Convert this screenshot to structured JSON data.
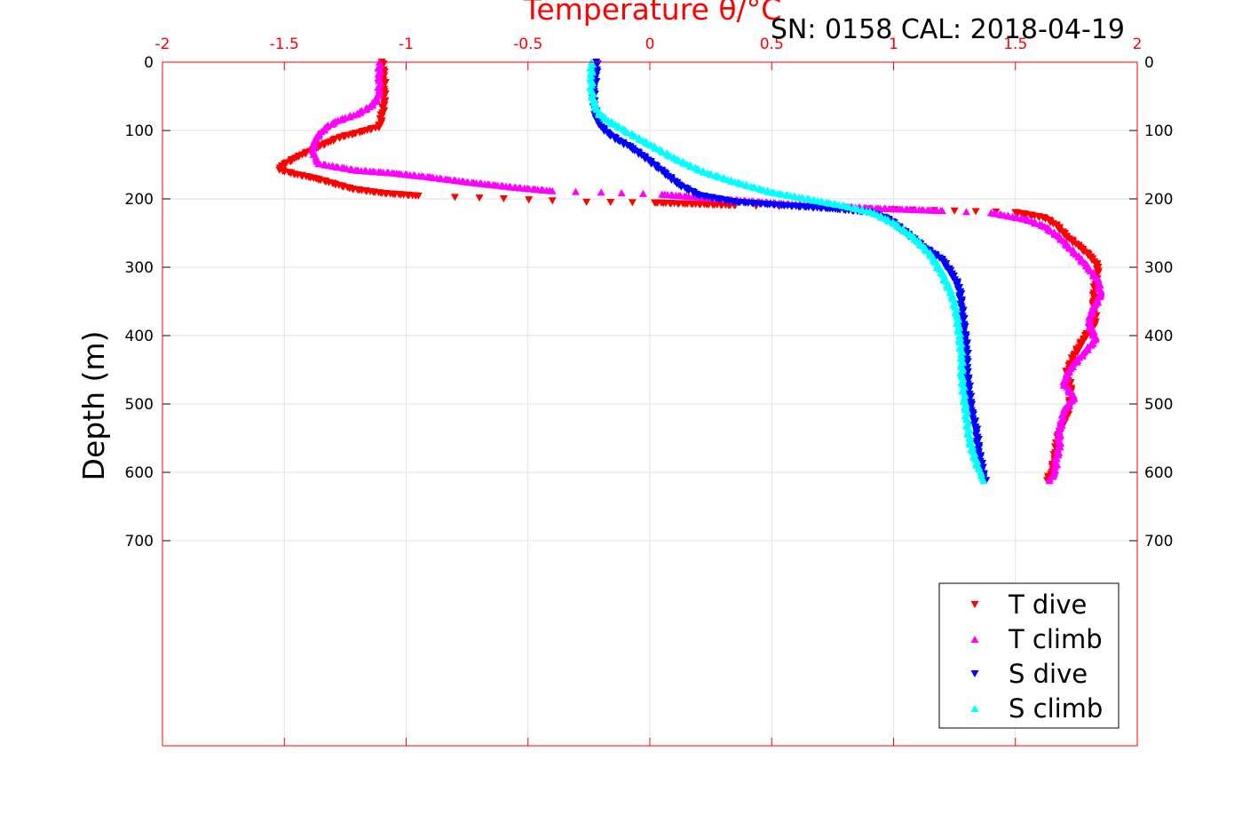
{
  "chart_data": {
    "type": "scatter",
    "title": "SN: 0158  CAL: 2018-04-19",
    "xlabel": "Temperature θ/°C",
    "ylabel": "Depth (m)",
    "xlim": [
      -2,
      2
    ],
    "ylim": [
      0,
      1000
    ],
    "y_reversed": true,
    "grid": true,
    "legend_position": "bottom-right",
    "x_tick_labels": [
      "-2",
      "-1.5",
      "-1",
      "-0.5",
      "0",
      "0.5",
      "1",
      "1.5",
      "2"
    ],
    "y_tick_labels": [
      "0",
      "100",
      "200",
      "300",
      "400",
      "500",
      "600",
      "700"
    ],
    "y_ticks": [
      0,
      100,
      200,
      300,
      400,
      500,
      600,
      700
    ],
    "series": [
      {
        "name": "T dive",
        "color": "#ff0000",
        "marker": "triangle-down",
        "x": [
          -1.1,
          -1.09,
          -1.09,
          -1.09,
          -1.1,
          -1.11,
          -1.16,
          -1.21,
          -1.27,
          -1.32,
          -1.38,
          -1.45,
          -1.51,
          -1.52,
          -1.46,
          -1.38,
          -1.3,
          -1.22,
          -1.1,
          -0.95,
          -0.8,
          -0.6,
          -0.4,
          -0.26,
          0.02,
          0.35,
          0.7,
          1.0,
          1.25,
          1.5,
          1.62,
          1.67,
          1.71,
          1.76,
          1.81,
          1.84,
          1.83,
          1.82,
          1.83,
          1.78,
          1.74,
          1.71,
          1.73,
          1.72,
          1.68,
          1.67,
          1.66,
          1.65,
          1.63
        ],
        "y": [
          0,
          20,
          40,
          60,
          80,
          95,
          100,
          105,
          110,
          118,
          128,
          140,
          152,
          158,
          164,
          170,
          178,
          186,
          192,
          196,
          198,
          200,
          203,
          205,
          206,
          210,
          213,
          216,
          218,
          220,
          228,
          240,
          255,
          270,
          285,
          300,
          320,
          350,
          380,
          405,
          430,
          455,
          480,
          510,
          540,
          560,
          580,
          600,
          612
        ]
      },
      {
        "name": "T climb",
        "color": "#ff00ff",
        "marker": "triangle-up",
        "x": [
          -1.11,
          -1.11,
          -1.11,
          -1.12,
          -1.15,
          -1.2,
          -1.28,
          -1.33,
          -1.37,
          -1.38,
          -1.38,
          -1.37,
          -1.36,
          -1.3,
          -1.2,
          -1.05,
          -0.9,
          -0.75,
          -0.55,
          -0.4,
          -0.2,
          0.05,
          0.3,
          0.6,
          0.9,
          1.2,
          1.4,
          1.55,
          1.62,
          1.68,
          1.72,
          1.76,
          1.8,
          1.84,
          1.85,
          1.82,
          1.8,
          1.83,
          1.78,
          1.72,
          1.7,
          1.74,
          1.7,
          1.68,
          1.68,
          1.67,
          1.66,
          1.64
        ],
        "y": [
          0,
          20,
          40,
          55,
          65,
          75,
          85,
          95,
          110,
          125,
          135,
          142,
          148,
          152,
          158,
          162,
          168,
          175,
          183,
          188,
          190,
          193,
          200,
          208,
          213,
          217,
          220,
          230,
          240,
          255,
          270,
          285,
          300,
          320,
          340,
          360,
          380,
          405,
          425,
          450,
          470,
          490,
          510,
          540,
          560,
          580,
          600,
          612
        ]
      },
      {
        "name": "S dive",
        "color": "#0000ff",
        "marker": "triangle-down",
        "x": [
          -0.22,
          -0.22,
          -0.23,
          -0.23,
          -0.22,
          -0.2,
          -0.17,
          -0.13,
          -0.08,
          -0.02,
          0.05,
          0.12,
          0.2,
          0.35,
          0.55,
          0.75,
          0.9,
          0.98,
          1.05,
          1.12,
          1.2,
          1.24,
          1.27,
          1.28,
          1.29,
          1.3,
          1.3,
          1.31,
          1.32,
          1.34,
          1.35,
          1.36,
          1.37,
          1.38
        ],
        "y": [
          0,
          20,
          40,
          60,
          80,
          95,
          105,
          115,
          125,
          140,
          160,
          180,
          195,
          205,
          210,
          215,
          220,
          230,
          250,
          270,
          290,
          310,
          330,
          360,
          390,
          420,
          450,
          480,
          510,
          540,
          570,
          590,
          605,
          612
        ]
      },
      {
        "name": "S climb",
        "color": "#00ffff",
        "marker": "triangle-up",
        "x": [
          -0.24,
          -0.24,
          -0.24,
          -0.23,
          -0.21,
          -0.17,
          -0.1,
          0.0,
          0.1,
          0.22,
          0.35,
          0.5,
          0.65,
          0.8,
          0.92,
          1.0,
          1.08,
          1.15,
          1.2,
          1.24,
          1.26,
          1.27,
          1.28,
          1.28,
          1.29,
          1.3,
          1.31,
          1.33,
          1.35,
          1.36,
          1.37
        ],
        "y": [
          0,
          20,
          40,
          60,
          75,
          85,
          100,
          120,
          140,
          160,
          175,
          190,
          200,
          210,
          220,
          235,
          255,
          280,
          310,
          340,
          370,
          400,
          430,
          460,
          490,
          520,
          550,
          575,
          595,
          605,
          612
        ]
      }
    ]
  }
}
